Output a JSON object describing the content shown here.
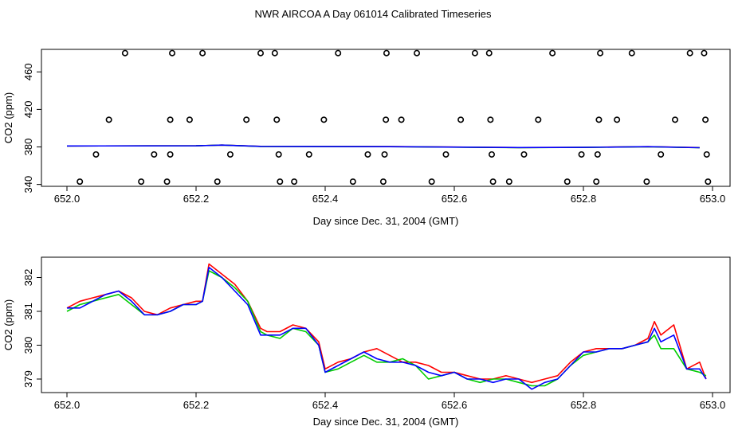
{
  "title": "NWR AIRCOA A  Day 061014  Calibrated Timeseries",
  "colors": {
    "series_a": "#ff0000",
    "series_b": "#00cc00",
    "series_c": "#0000ff",
    "points": "#000000"
  },
  "chart_data": [
    {
      "type": "scatter",
      "xlabel": "Day since Dec. 31, 2004 (GMT)",
      "ylabel": "CO2 (ppm)",
      "xlim": [
        652.0,
        653.0
      ],
      "ylim": [
        338,
        484
      ],
      "xticks": [
        "652.0",
        "652.2",
        "652.4",
        "652.6",
        "652.8",
        "653.0"
      ],
      "yticks": [
        "340",
        "380",
        "420",
        "460"
      ],
      "grid": false,
      "calibration_points": [
        [
          652.02,
          343
        ],
        [
          652.045,
          372
        ],
        [
          652.065,
          409
        ],
        [
          652.09,
          480
        ],
        [
          652.115,
          343
        ],
        [
          652.135,
          372
        ],
        [
          652.155,
          343
        ],
        [
          652.16,
          372
        ],
        [
          652.16,
          409
        ],
        [
          652.163,
          480
        ],
        [
          652.19,
          409
        ],
        [
          652.21,
          480
        ],
        [
          652.233,
          343
        ],
        [
          652.253,
          372
        ],
        [
          652.278,
          409
        ],
        [
          652.3,
          480
        ],
        [
          652.322,
          480
        ],
        [
          652.325,
          409
        ],
        [
          652.328,
          372
        ],
        [
          652.33,
          343
        ],
        [
          652.352,
          343
        ],
        [
          652.375,
          372
        ],
        [
          652.398,
          409
        ],
        [
          652.42,
          480
        ],
        [
          652.443,
          343
        ],
        [
          652.466,
          372
        ],
        [
          652.49,
          343
        ],
        [
          652.492,
          372
        ],
        [
          652.494,
          409
        ],
        [
          652.495,
          480
        ],
        [
          652.518,
          409
        ],
        [
          652.542,
          480
        ],
        [
          652.565,
          343
        ],
        [
          652.587,
          372
        ],
        [
          652.61,
          409
        ],
        [
          652.632,
          480
        ],
        [
          652.654,
          480
        ],
        [
          652.656,
          409
        ],
        [
          652.658,
          372
        ],
        [
          652.66,
          343
        ],
        [
          652.685,
          343
        ],
        [
          652.708,
          372
        ],
        [
          652.73,
          409
        ],
        [
          652.752,
          480
        ],
        [
          652.775,
          343
        ],
        [
          652.797,
          372
        ],
        [
          652.82,
          343
        ],
        [
          652.822,
          372
        ],
        [
          652.824,
          409
        ],
        [
          652.826,
          480
        ],
        [
          652.852,
          409
        ],
        [
          652.875,
          480
        ],
        [
          652.898,
          343
        ],
        [
          652.92,
          372
        ],
        [
          652.942,
          409
        ],
        [
          652.965,
          480
        ],
        [
          652.987,
          480
        ],
        [
          652.989,
          409
        ],
        [
          652.991,
          372
        ],
        [
          652.993,
          343
        ]
      ],
      "series": [
        {
          "color": "#ff0000",
          "x": [
            652.0,
            652.2,
            652.24,
            652.3,
            652.5,
            652.7,
            652.8,
            652.9,
            652.98
          ],
          "y": [
            381,
            381.2,
            382,
            380.6,
            380.4,
            379.3,
            379.6,
            380.3,
            379.3
          ]
        },
        {
          "color": "#00cc00",
          "x": [
            652.0,
            652.2,
            652.24,
            652.3,
            652.5,
            652.7,
            652.8,
            652.9,
            652.98
          ],
          "y": [
            381,
            381.2,
            382,
            380.5,
            380.3,
            379.2,
            379.5,
            380.2,
            379.2
          ]
        },
        {
          "color": "#0000ff",
          "x": [
            652.0,
            652.2,
            652.24,
            652.3,
            652.5,
            652.7,
            652.8,
            652.9,
            652.98
          ],
          "y": [
            381,
            381.2,
            382,
            380.6,
            380.3,
            379.3,
            379.5,
            380.3,
            379.2
          ]
        }
      ]
    },
    {
      "type": "line",
      "xlabel": "Day since Dec. 31, 2004 (GMT)",
      "ylabel": "CO2 (ppm)",
      "xlim": [
        652.0,
        653.0
      ],
      "ylim": [
        378.6,
        382.6
      ],
      "xticks": [
        "652.0",
        "652.2",
        "652.4",
        "652.6",
        "652.8",
        "653.0"
      ],
      "yticks": [
        "379",
        "380",
        "381",
        "382"
      ],
      "grid": false,
      "series": [
        {
          "color": "#ff0000",
          "x": [
            652.0,
            652.02,
            652.04,
            652.06,
            652.08,
            652.1,
            652.12,
            652.14,
            652.16,
            652.18,
            652.2,
            652.21,
            652.22,
            652.24,
            652.26,
            652.28,
            652.3,
            652.31,
            652.33,
            652.35,
            652.37,
            652.39,
            652.4,
            652.42,
            652.44,
            652.46,
            652.48,
            652.5,
            652.52,
            652.54,
            652.56,
            652.58,
            652.6,
            652.62,
            652.64,
            652.66,
            652.68,
            652.7,
            652.72,
            652.74,
            652.76,
            652.78,
            652.8,
            652.82,
            652.84,
            652.86,
            652.88,
            652.9,
            652.91,
            652.92,
            652.94,
            652.96,
            652.98,
            652.99
          ],
          "y": [
            381.1,
            381.3,
            381.4,
            381.5,
            381.6,
            381.4,
            381.0,
            380.9,
            381.1,
            381.2,
            381.3,
            381.3,
            382.4,
            382.1,
            381.8,
            381.3,
            380.5,
            380.4,
            380.4,
            380.6,
            380.5,
            380.1,
            379.3,
            379.5,
            379.6,
            379.8,
            379.9,
            379.7,
            379.5,
            379.5,
            379.4,
            379.2,
            379.2,
            379.1,
            379.0,
            379.0,
            379.1,
            379.0,
            378.9,
            379.0,
            379.1,
            379.5,
            379.8,
            379.9,
            379.9,
            379.9,
            380.0,
            380.2,
            380.7,
            380.3,
            380.6,
            379.3,
            379.5,
            379.0
          ]
        },
        {
          "color": "#00cc00",
          "x": [
            652.0,
            652.02,
            652.04,
            652.06,
            652.08,
            652.1,
            652.12,
            652.14,
            652.16,
            652.18,
            652.2,
            652.21,
            652.22,
            652.24,
            652.26,
            652.28,
            652.3,
            652.31,
            652.33,
            652.35,
            652.37,
            652.39,
            652.4,
            652.42,
            652.44,
            652.46,
            652.48,
            652.5,
            652.52,
            652.54,
            652.56,
            652.58,
            652.6,
            652.62,
            652.64,
            652.66,
            652.68,
            652.7,
            652.72,
            652.74,
            652.76,
            652.78,
            652.8,
            652.82,
            652.84,
            652.86,
            652.88,
            652.9,
            652.91,
            652.92,
            652.94,
            652.96,
            652.98,
            652.99
          ],
          "y": [
            381.0,
            381.2,
            381.3,
            381.4,
            381.5,
            381.2,
            380.9,
            380.9,
            381.0,
            381.2,
            381.2,
            381.3,
            382.2,
            382.0,
            381.7,
            381.3,
            380.4,
            380.3,
            380.2,
            380.5,
            380.4,
            380.0,
            379.2,
            379.3,
            379.5,
            379.7,
            379.5,
            379.5,
            379.6,
            379.4,
            379.0,
            379.1,
            379.2,
            379.0,
            378.9,
            379.0,
            379.0,
            378.9,
            378.8,
            378.8,
            379.0,
            379.4,
            379.7,
            379.8,
            379.9,
            379.9,
            380.0,
            380.1,
            380.3,
            379.9,
            379.9,
            379.3,
            379.2,
            379.1
          ]
        },
        {
          "color": "#0000ff",
          "x": [
            652.0,
            652.02,
            652.04,
            652.06,
            652.08,
            652.1,
            652.12,
            652.14,
            652.16,
            652.18,
            652.2,
            652.21,
            652.22,
            652.24,
            652.26,
            652.28,
            652.3,
            652.31,
            652.33,
            652.35,
            652.37,
            652.39,
            652.4,
            652.42,
            652.44,
            652.46,
            652.48,
            652.5,
            652.52,
            652.54,
            652.56,
            652.58,
            652.6,
            652.62,
            652.64,
            652.66,
            652.68,
            652.7,
            652.72,
            652.74,
            652.76,
            652.78,
            652.8,
            652.82,
            652.84,
            652.86,
            652.88,
            652.9,
            652.91,
            652.92,
            652.94,
            652.96,
            652.98,
            652.99
          ],
          "y": [
            381.1,
            381.1,
            381.3,
            381.5,
            381.6,
            381.3,
            380.9,
            380.9,
            381.0,
            381.2,
            381.2,
            381.3,
            382.3,
            382.0,
            381.6,
            381.2,
            380.3,
            380.3,
            380.3,
            380.5,
            380.5,
            380.0,
            379.2,
            379.4,
            379.6,
            379.8,
            379.6,
            379.5,
            379.5,
            379.4,
            379.2,
            379.1,
            379.2,
            379.0,
            379.0,
            378.9,
            379.0,
            379.0,
            378.7,
            378.9,
            379.0,
            379.4,
            379.8,
            379.8,
            379.9,
            379.9,
            380.0,
            380.1,
            380.5,
            380.1,
            380.3,
            379.3,
            379.3,
            379.0
          ]
        }
      ]
    }
  ]
}
